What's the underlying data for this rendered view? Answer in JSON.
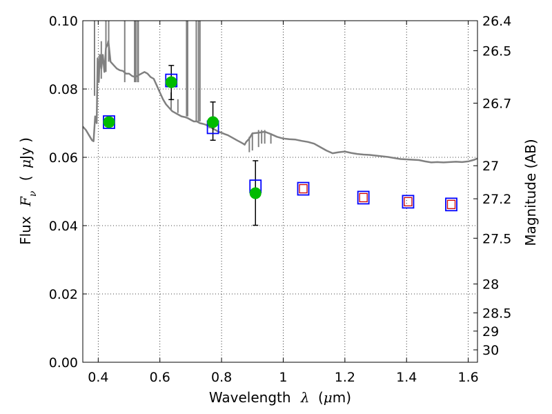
{
  "chart_data": {
    "type": "scatter",
    "xlabel": {
      "prefix": "Wavelength",
      "symbol": "λ",
      "unit_open": "(",
      "unit_mu": "μ",
      "unit_rest": "m)"
    },
    "ylabel": {
      "prefix": "Flux",
      "symbol": "F",
      "symbol_sub": "ν",
      "unit_open": "(",
      "unit_mu": "μ",
      "unit_rest": "Jy )"
    },
    "y2label": "Magnitude (AB)",
    "xlim": [
      0.35,
      1.63
    ],
    "ylim": [
      0.0,
      0.1
    ],
    "grid": true,
    "x_ticks": [
      {
        "v": 0.4,
        "label": "0.4"
      },
      {
        "v": 0.6,
        "label": "0.6"
      },
      {
        "v": 0.8,
        "label": "0.8"
      },
      {
        "v": 1.0,
        "label": "1"
      },
      {
        "v": 1.2,
        "label": "1.2"
      },
      {
        "v": 1.4,
        "label": "1.4"
      },
      {
        "v": 1.6,
        "label": "1.6"
      }
    ],
    "y_ticks": [
      {
        "v": 0.0,
        "label": "0.00"
      },
      {
        "v": 0.02,
        "label": "0.02"
      },
      {
        "v": 0.04,
        "label": "0.04"
      },
      {
        "v": 0.06,
        "label": "0.06"
      },
      {
        "v": 0.08,
        "label": "0.08"
      },
      {
        "v": 0.1,
        "label": "0.10"
      }
    ],
    "mag_ticks": [
      {
        "v": 26.4,
        "label": "26.4"
      },
      {
        "v": 26.5,
        "label": "26.5"
      },
      {
        "v": 26.7,
        "label": "26.7"
      },
      {
        "v": 27.0,
        "label": "27"
      },
      {
        "v": 27.2,
        "label": "27.2"
      },
      {
        "v": 27.5,
        "label": "27.5"
      },
      {
        "v": 28.0,
        "label": "28"
      },
      {
        "v": 28.5,
        "label": "28.5"
      },
      {
        "v": 29.0,
        "label": "29"
      },
      {
        "v": 30.0,
        "label": "30"
      }
    ],
    "series": [
      {
        "kind": "model-spectrum",
        "color": "#808080",
        "points": [
          [
            0.35,
            0.069
          ],
          [
            0.36,
            0.068
          ],
          [
            0.37,
            0.0665
          ],
          [
            0.38,
            0.065
          ],
          [
            0.385,
            0.0647
          ],
          [
            0.39,
            0.072
          ],
          [
            0.395,
            0.07
          ],
          [
            0.398,
            0.089
          ],
          [
            0.402,
            0.082
          ],
          [
            0.405,
            0.09
          ],
          [
            0.41,
            0.086
          ],
          [
            0.415,
            0.09
          ],
          [
            0.42,
            0.085
          ],
          [
            0.425,
            0.092
          ],
          [
            0.43,
            0.093
          ],
          [
            0.433,
            0.094
          ],
          [
            0.44,
            0.088
          ],
          [
            0.45,
            0.087
          ],
          [
            0.46,
            0.086
          ],
          [
            0.47,
            0.0855
          ],
          [
            0.48,
            0.0853
          ],
          [
            0.49,
            0.0845
          ],
          [
            0.5,
            0.0845
          ],
          [
            0.51,
            0.0838
          ],
          [
            0.52,
            0.0835
          ],
          [
            0.53,
            0.084
          ],
          [
            0.54,
            0.0845
          ],
          [
            0.55,
            0.085
          ],
          [
            0.56,
            0.0845
          ],
          [
            0.57,
            0.0835
          ],
          [
            0.58,
            0.083
          ],
          [
            0.59,
            0.081
          ],
          [
            0.6,
            0.079
          ],
          [
            0.61,
            0.077
          ],
          [
            0.62,
            0.0755
          ],
          [
            0.63,
            0.0745
          ],
          [
            0.64,
            0.0735
          ],
          [
            0.65,
            0.073
          ],
          [
            0.66,
            0.0725
          ],
          [
            0.67,
            0.072
          ],
          [
            0.68,
            0.0718
          ],
          [
            0.69,
            0.0715
          ],
          [
            0.7,
            0.071
          ],
          [
            0.71,
            0.0705
          ],
          [
            0.72,
            0.0705
          ],
          [
            0.73,
            0.07
          ],
          [
            0.74,
            0.0698
          ],
          [
            0.75,
            0.0695
          ],
          [
            0.76,
            0.069
          ],
          [
            0.77,
            0.0685
          ],
          [
            0.78,
            0.068
          ],
          [
            0.79,
            0.0675
          ],
          [
            0.8,
            0.0672
          ],
          [
            0.81,
            0.0668
          ],
          [
            0.82,
            0.0665
          ],
          [
            0.83,
            0.066
          ],
          [
            0.84,
            0.0655
          ],
          [
            0.85,
            0.065
          ],
          [
            0.86,
            0.0645
          ],
          [
            0.87,
            0.064
          ],
          [
            0.875,
            0.0637
          ],
          [
            0.88,
            0.0645
          ],
          [
            0.89,
            0.0655
          ],
          [
            0.9,
            0.067
          ],
          [
            0.92,
            0.0672
          ],
          [
            0.94,
            0.0675
          ],
          [
            0.96,
            0.0668
          ],
          [
            0.98,
            0.066
          ],
          [
            1.0,
            0.0655
          ],
          [
            1.02,
            0.0653
          ],
          [
            1.04,
            0.0652
          ],
          [
            1.06,
            0.0648
          ],
          [
            1.08,
            0.0645
          ],
          [
            1.1,
            0.064
          ],
          [
            1.12,
            0.063
          ],
          [
            1.14,
            0.062
          ],
          [
            1.16,
            0.0612
          ],
          [
            1.18,
            0.0615
          ],
          [
            1.2,
            0.0617
          ],
          [
            1.22,
            0.0613
          ],
          [
            1.24,
            0.061
          ],
          [
            1.26,
            0.0608
          ],
          [
            1.28,
            0.0607
          ],
          [
            1.3,
            0.0605
          ],
          [
            1.32,
            0.0603
          ],
          [
            1.34,
            0.0601
          ],
          [
            1.36,
            0.0598
          ],
          [
            1.38,
            0.0595
          ],
          [
            1.4,
            0.0594
          ],
          [
            1.42,
            0.0593
          ],
          [
            1.44,
            0.0592
          ],
          [
            1.46,
            0.0588
          ],
          [
            1.48,
            0.0585
          ],
          [
            1.5,
            0.0586
          ],
          [
            1.52,
            0.0585
          ],
          [
            1.54,
            0.0586
          ],
          [
            1.56,
            0.0587
          ],
          [
            1.58,
            0.0586
          ],
          [
            1.6,
            0.0588
          ],
          [
            1.62,
            0.0593
          ],
          [
            1.63,
            0.0597
          ]
        ],
        "spikes": [
          [
            0.388,
            0.078,
            0.1
          ],
          [
            0.41,
            0.083,
            0.094
          ],
          [
            0.425,
            0.085,
            0.1
          ],
          [
            0.434,
            0.088,
            0.1
          ],
          [
            0.486,
            0.082,
            0.1
          ],
          [
            0.518,
            0.082,
            0.1
          ],
          [
            0.522,
            0.082,
            0.1
          ],
          [
            0.528,
            0.082,
            0.1
          ],
          [
            0.53,
            0.082,
            0.1
          ],
          [
            0.6365,
            0.074,
            0.079
          ],
          [
            0.6585,
            0.073,
            0.077
          ],
          [
            0.6865,
            0.072,
            0.1
          ],
          [
            0.69,
            0.072,
            0.1
          ],
          [
            0.718,
            0.0705,
            0.1
          ],
          [
            0.725,
            0.0705,
            0.1
          ],
          [
            0.73,
            0.0705,
            0.1
          ],
          [
            0.76,
            0.0685,
            0.0705
          ],
          [
            0.775,
            0.068,
            0.0695
          ],
          [
            0.89,
            0.0615,
            0.066
          ],
          [
            0.9,
            0.062,
            0.067
          ],
          [
            0.92,
            0.063,
            0.068
          ],
          [
            0.93,
            0.064,
            0.068
          ],
          [
            0.94,
            0.064,
            0.068
          ],
          [
            0.96,
            0.064,
            0.067
          ]
        ]
      },
      {
        "kind": "model-photometry",
        "marker": "square",
        "edgecolor": "#0000ff",
        "x": [
          0.435,
          0.637,
          0.772,
          0.91,
          1.065,
          1.26,
          1.405,
          1.545
        ],
        "y": [
          0.0703,
          0.0825,
          0.0688,
          0.0515,
          0.0508,
          0.0482,
          0.047,
          0.0462
        ]
      },
      {
        "kind": "model-photometry-inner",
        "marker": "square",
        "edgecolor": "#cc0000",
        "x": [
          0.435,
          1.065,
          1.26,
          1.405,
          1.545
        ],
        "y": [
          0.0703,
          0.0508,
          0.0482,
          0.047,
          0.0462
        ]
      },
      {
        "kind": "observed",
        "marker": "circle",
        "color": "#00bb00",
        "x": [
          0.435,
          0.637,
          0.772,
          0.91
        ],
        "y": [
          0.0703,
          0.082,
          0.0703,
          0.0495
        ],
        "yerr_low": [
          0.0,
          0.0051,
          0.0053,
          0.0094
        ],
        "yerr_high": [
          0.0,
          0.0049,
          0.0059,
          0.0095
        ]
      }
    ]
  }
}
